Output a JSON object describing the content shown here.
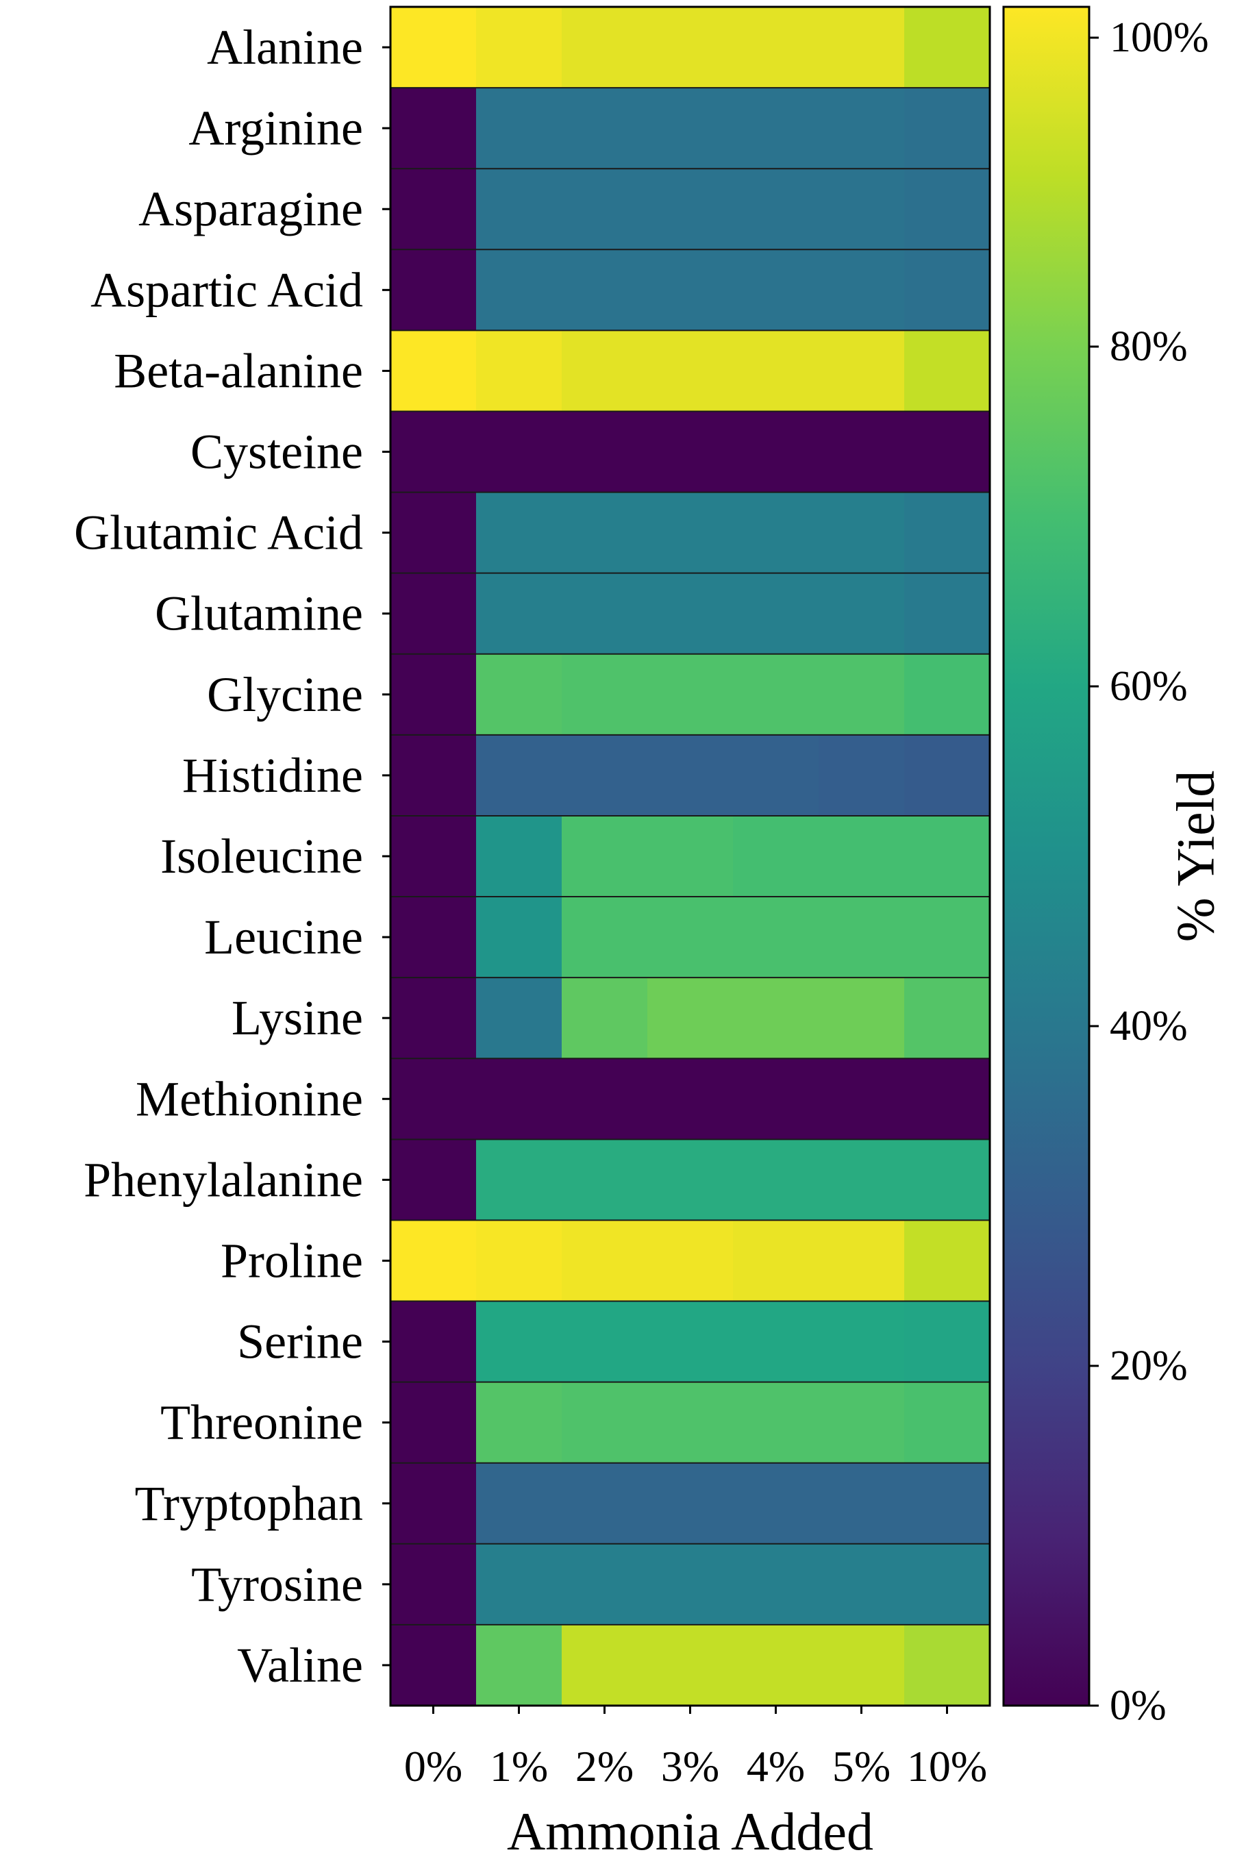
{
  "chart_data": {
    "type": "heatmap",
    "title": "",
    "xlabel": "Ammonia Added",
    "ylabel": "",
    "colorbar_label": "% Yield",
    "colormap": "viridis",
    "x_categories": [
      "0%",
      "1%",
      "2%",
      "3%",
      "4%",
      "5%",
      "10%"
    ],
    "y_categories": [
      "Alanine",
      "Arginine",
      "Asparagine",
      "Aspartic Acid",
      "Beta-alanine",
      "Cysteine",
      "Glutamic Acid",
      "Glutamine",
      "Glycine",
      "Histidine",
      "Isoleucine",
      "Leucine",
      "Lysine",
      "Methionine",
      "Phenylalanine",
      "Proline",
      "Serine",
      "Threonine",
      "Tryptophan",
      "Tyrosine",
      "Valine"
    ],
    "values": [
      [
        100,
        98,
        96,
        96,
        96,
        96,
        90
      ],
      [
        0,
        38,
        38,
        38,
        38,
        38,
        37
      ],
      [
        0,
        38,
        38,
        38,
        38,
        38,
        37
      ],
      [
        0,
        38,
        38,
        38,
        38,
        38,
        37
      ],
      [
        100,
        98,
        96,
        96,
        96,
        96,
        91
      ],
      [
        0,
        0,
        0,
        0,
        0,
        0,
        0
      ],
      [
        0,
        43,
        43,
        43,
        43,
        43,
        41
      ],
      [
        0,
        43,
        43,
        43,
        43,
        43,
        41
      ],
      [
        0,
        73,
        72,
        72,
        72,
        72,
        70
      ],
      [
        0,
        31,
        31,
        31,
        31,
        30,
        29
      ],
      [
        0,
        52,
        71,
        71,
        70,
        70,
        70
      ],
      [
        0,
        52,
        71,
        71,
        71,
        71,
        71
      ],
      [
        0,
        40,
        75,
        78,
        78,
        78,
        73
      ],
      [
        0,
        0,
        0,
        0,
        0,
        0,
        0
      ],
      [
        0,
        62,
        62,
        62,
        62,
        62,
        62
      ],
      [
        100,
        99,
        98,
        98,
        97,
        97,
        91
      ],
      [
        0,
        60,
        60,
        60,
        60,
        60,
        59
      ],
      [
        0,
        73,
        72,
        72,
        72,
        72,
        71
      ],
      [
        0,
        33,
        33,
        33,
        33,
        33,
        33
      ],
      [
        0,
        43,
        43,
        43,
        43,
        43,
        43
      ],
      [
        0,
        75,
        91,
        91,
        91,
        91,
        87
      ]
    ],
    "colorbar_ticks": [
      "0%",
      "20%",
      "40%",
      "60%",
      "80%",
      "100%"
    ],
    "colorbar_range": [
      0,
      100
    ]
  }
}
